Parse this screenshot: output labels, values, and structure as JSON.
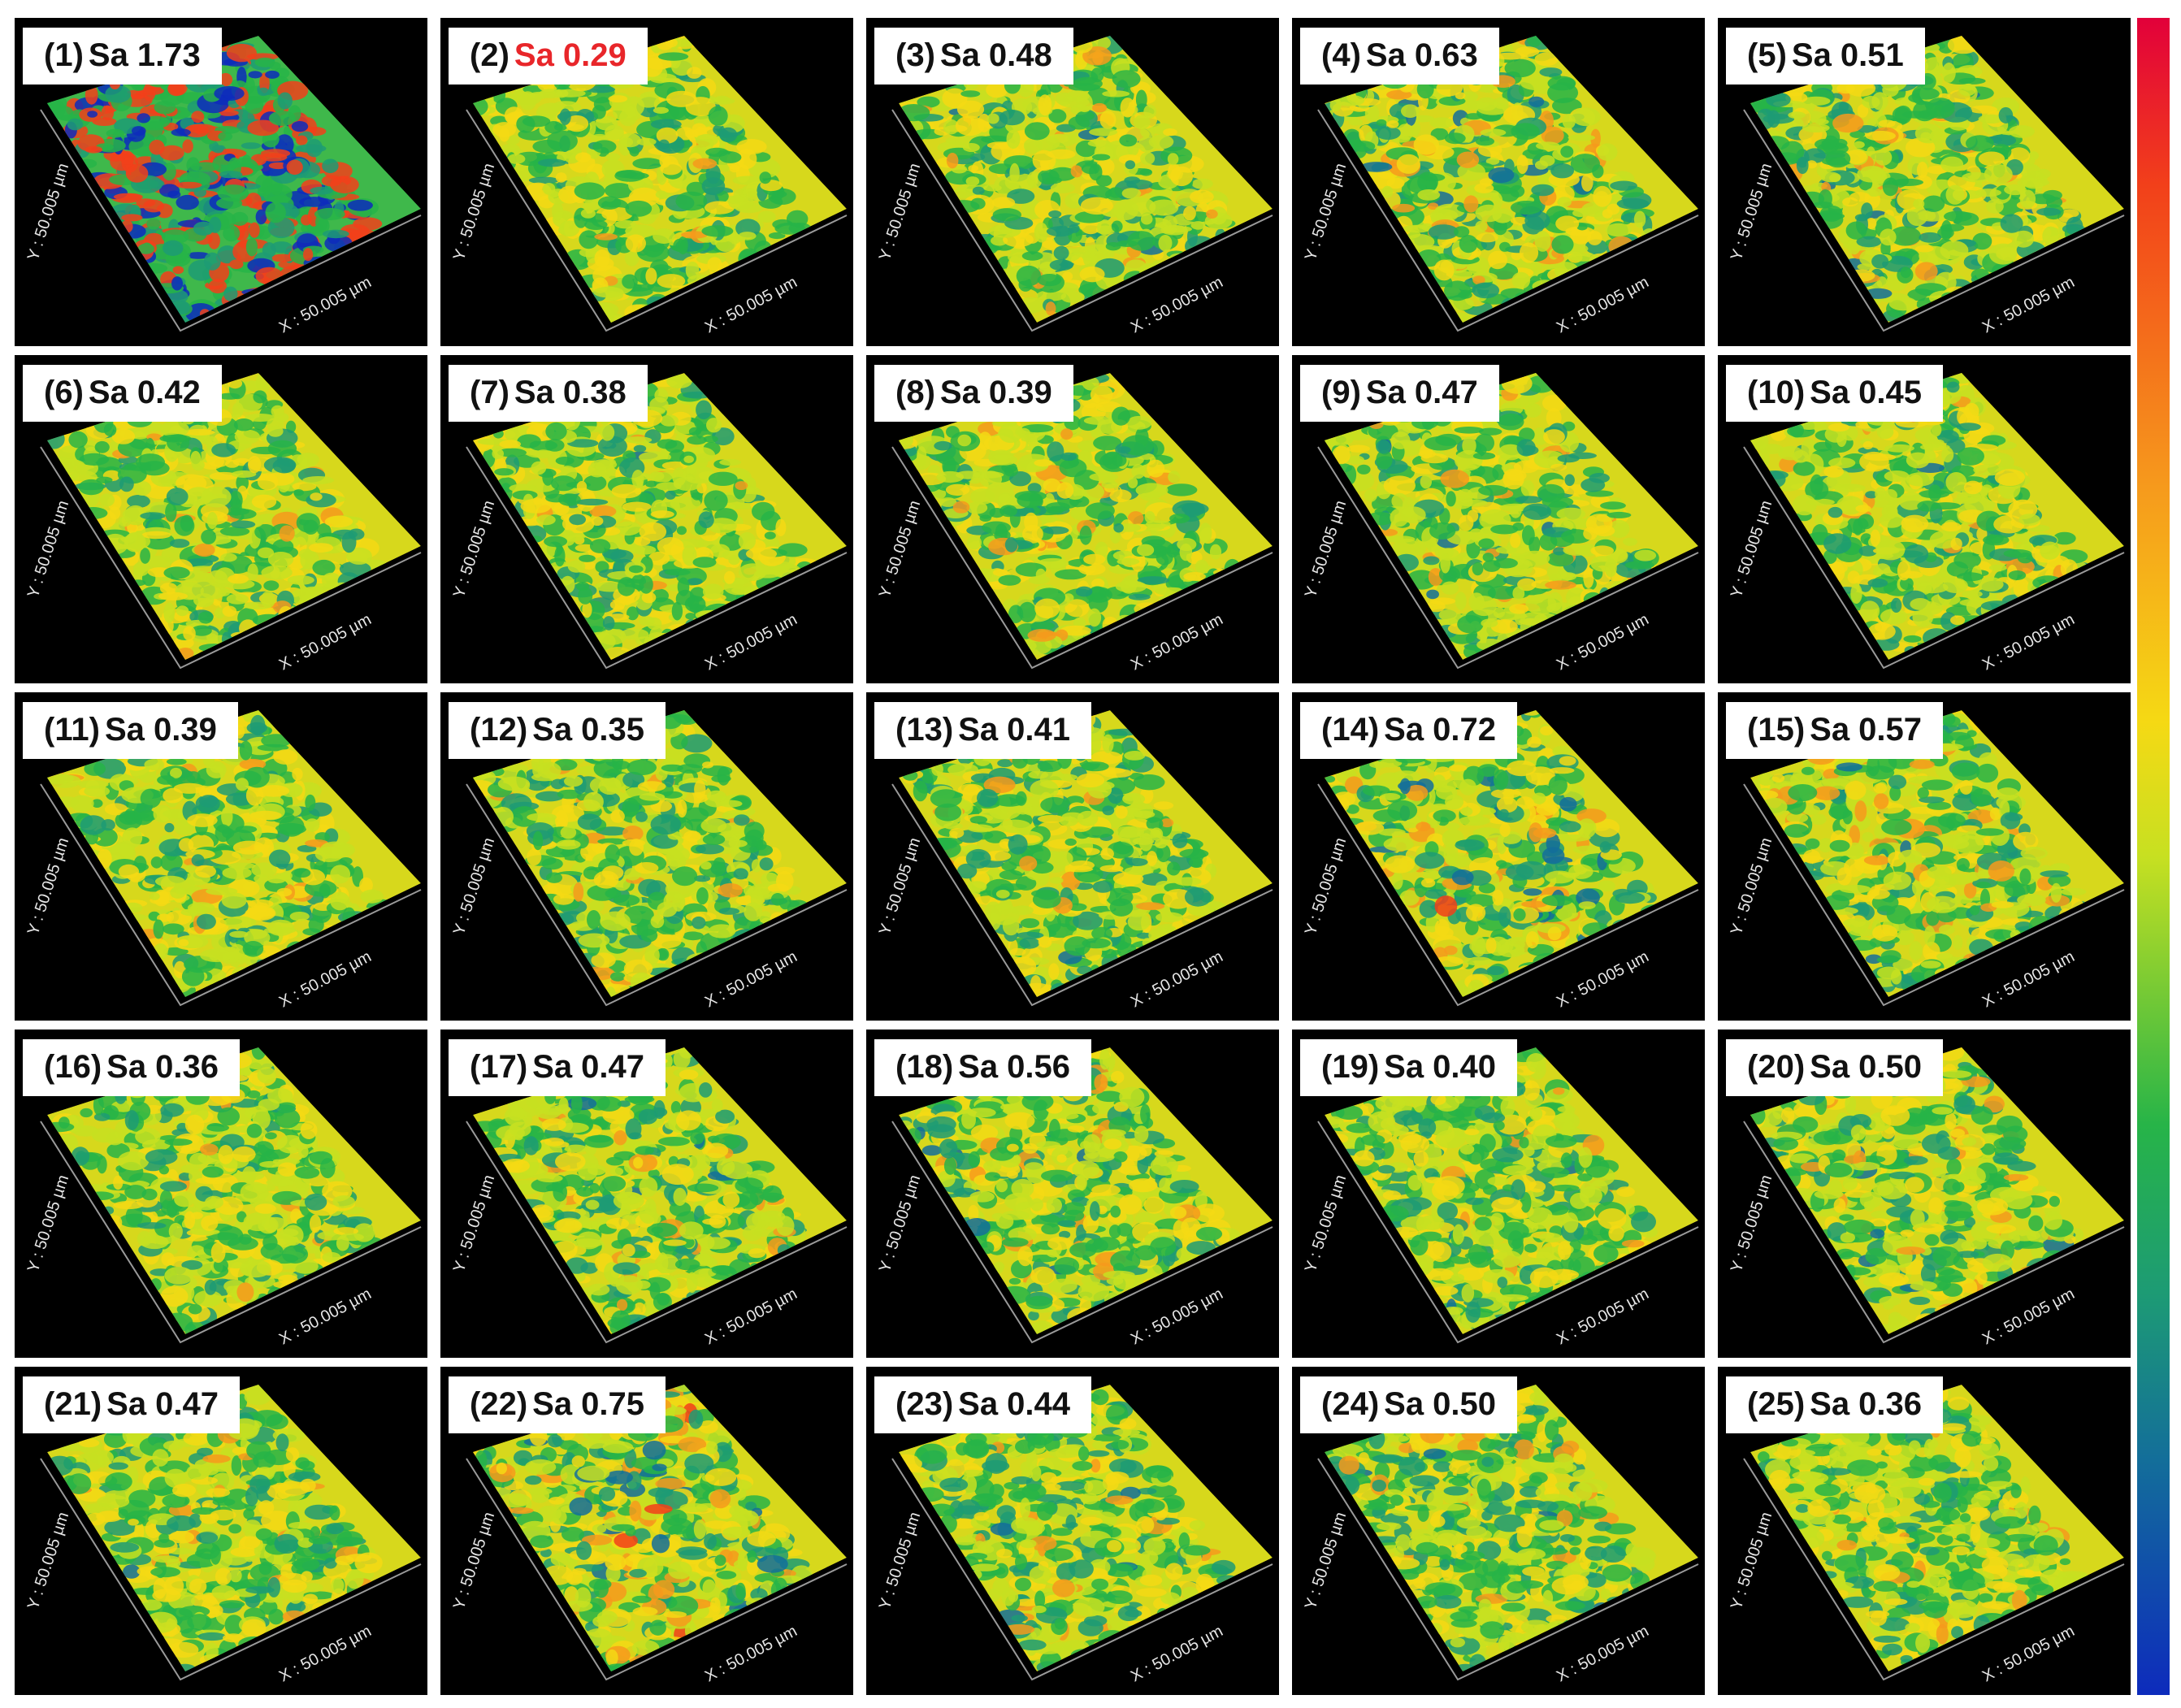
{
  "samples": [
    {
      "index": "(1)",
      "label": "Sa 1.73",
      "sa": 1.73,
      "highlight": false
    },
    {
      "index": "(2)",
      "label": "Sa 0.29",
      "sa": 0.29,
      "highlight": true
    },
    {
      "index": "(3)",
      "label": "Sa 0.48",
      "sa": 0.48,
      "highlight": false
    },
    {
      "index": "(4)",
      "label": "Sa 0.63",
      "sa": 0.63,
      "highlight": false
    },
    {
      "index": "(5)",
      "label": "Sa 0.51",
      "sa": 0.51,
      "highlight": false
    },
    {
      "index": "(6)",
      "label": "Sa 0.42",
      "sa": 0.42,
      "highlight": false
    },
    {
      "index": "(7)",
      "label": "Sa 0.38",
      "sa": 0.38,
      "highlight": false
    },
    {
      "index": "(8)",
      "label": "Sa 0.39",
      "sa": 0.39,
      "highlight": false
    },
    {
      "index": "(9)",
      "label": "Sa 0.47",
      "sa": 0.47,
      "highlight": false
    },
    {
      "index": "(10)",
      "label": "Sa 0.45",
      "sa": 0.45,
      "highlight": false
    },
    {
      "index": "(11)",
      "label": "Sa 0.39",
      "sa": 0.39,
      "highlight": false
    },
    {
      "index": "(12)",
      "label": "Sa 0.35",
      "sa": 0.35,
      "highlight": false
    },
    {
      "index": "(13)",
      "label": "Sa 0.41",
      "sa": 0.41,
      "highlight": false
    },
    {
      "index": "(14)",
      "label": "Sa 0.72",
      "sa": 0.72,
      "highlight": false
    },
    {
      "index": "(15)",
      "label": "Sa 0.57",
      "sa": 0.57,
      "highlight": false
    },
    {
      "index": "(16)",
      "label": "Sa 0.36",
      "sa": 0.36,
      "highlight": false
    },
    {
      "index": "(17)",
      "label": "Sa 0.47",
      "sa": 0.47,
      "highlight": false
    },
    {
      "index": "(18)",
      "label": "Sa 0.56",
      "sa": 0.56,
      "highlight": false
    },
    {
      "index": "(19)",
      "label": "Sa 0.40",
      "sa": 0.4,
      "highlight": false
    },
    {
      "index": "(20)",
      "label": "Sa 0.50",
      "sa": 0.5,
      "highlight": false
    },
    {
      "index": "(21)",
      "label": "Sa 0.47",
      "sa": 0.47,
      "highlight": false
    },
    {
      "index": "(22)",
      "label": "Sa 0.75",
      "sa": 0.75,
      "highlight": false
    },
    {
      "index": "(23)",
      "label": "Sa 0.44",
      "sa": 0.44,
      "highlight": false
    },
    {
      "index": "(24)",
      "label": "Sa 0.50",
      "sa": 0.5,
      "highlight": false
    },
    {
      "index": "(25)",
      "label": "Sa 0.36",
      "sa": 0.36,
      "highlight": false
    }
  ],
  "axis_text": {
    "x_label": "X : 50.005 µm",
    "y_label": "Y : 50.005 µm"
  },
  "colors": {
    "highlight": "#e8262a",
    "colormap": [
      "#0d2bbc",
      "#136e9a",
      "#1d9b74",
      "#27b448",
      "#c7e021",
      "#f5d914",
      "#f69a1c",
      "#f2401a",
      "#e2003a"
    ]
  }
}
